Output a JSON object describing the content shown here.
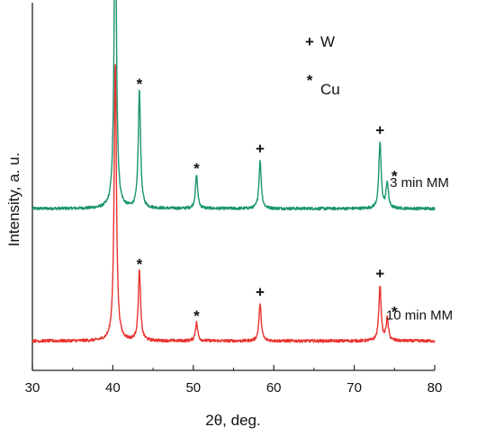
{
  "chart_data": {
    "type": "line",
    "xlabel": "2θ, deg.",
    "ylabel": "Intensity, a. u.",
    "xlim": [
      30,
      80
    ],
    "x_ticks": [
      "30",
      "40",
      "50",
      "60",
      "70",
      "80"
    ],
    "grid": false,
    "legend": {
      "placement": "top-right",
      "entries": [
        {
          "symbol": "+",
          "label": "W"
        },
        {
          "symbol": "*",
          "label": "Cu"
        }
      ]
    },
    "series": [
      {
        "name": "3 min MM",
        "color": "#1a9470",
        "baseline": 0.44,
        "peaks": [
          {
            "x": 40.3,
            "height": 0.87,
            "marker": "+"
          },
          {
            "x": 43.3,
            "height": 0.32,
            "marker": "*"
          },
          {
            "x": 50.4,
            "height": 0.09,
            "marker": "*"
          },
          {
            "x": 58.3,
            "height": 0.13,
            "marker": "+"
          },
          {
            "x": 73.2,
            "height": 0.18,
            "marker": "+"
          },
          {
            "x": 74.1,
            "height": 0.07,
            "marker": "*"
          }
        ]
      },
      {
        "name": "10 min MM",
        "color": "#e8332e",
        "baseline": 0.08,
        "peaks": [
          {
            "x": 40.3,
            "height": 0.76,
            "marker": null
          },
          {
            "x": 43.3,
            "height": 0.19,
            "marker": "*"
          },
          {
            "x": 50.4,
            "height": 0.05,
            "marker": "*"
          },
          {
            "x": 58.3,
            "height": 0.1,
            "marker": "+"
          },
          {
            "x": 73.2,
            "height": 0.15,
            "marker": "+"
          },
          {
            "x": 74.1,
            "height": 0.06,
            "marker": "*"
          }
        ]
      }
    ]
  }
}
